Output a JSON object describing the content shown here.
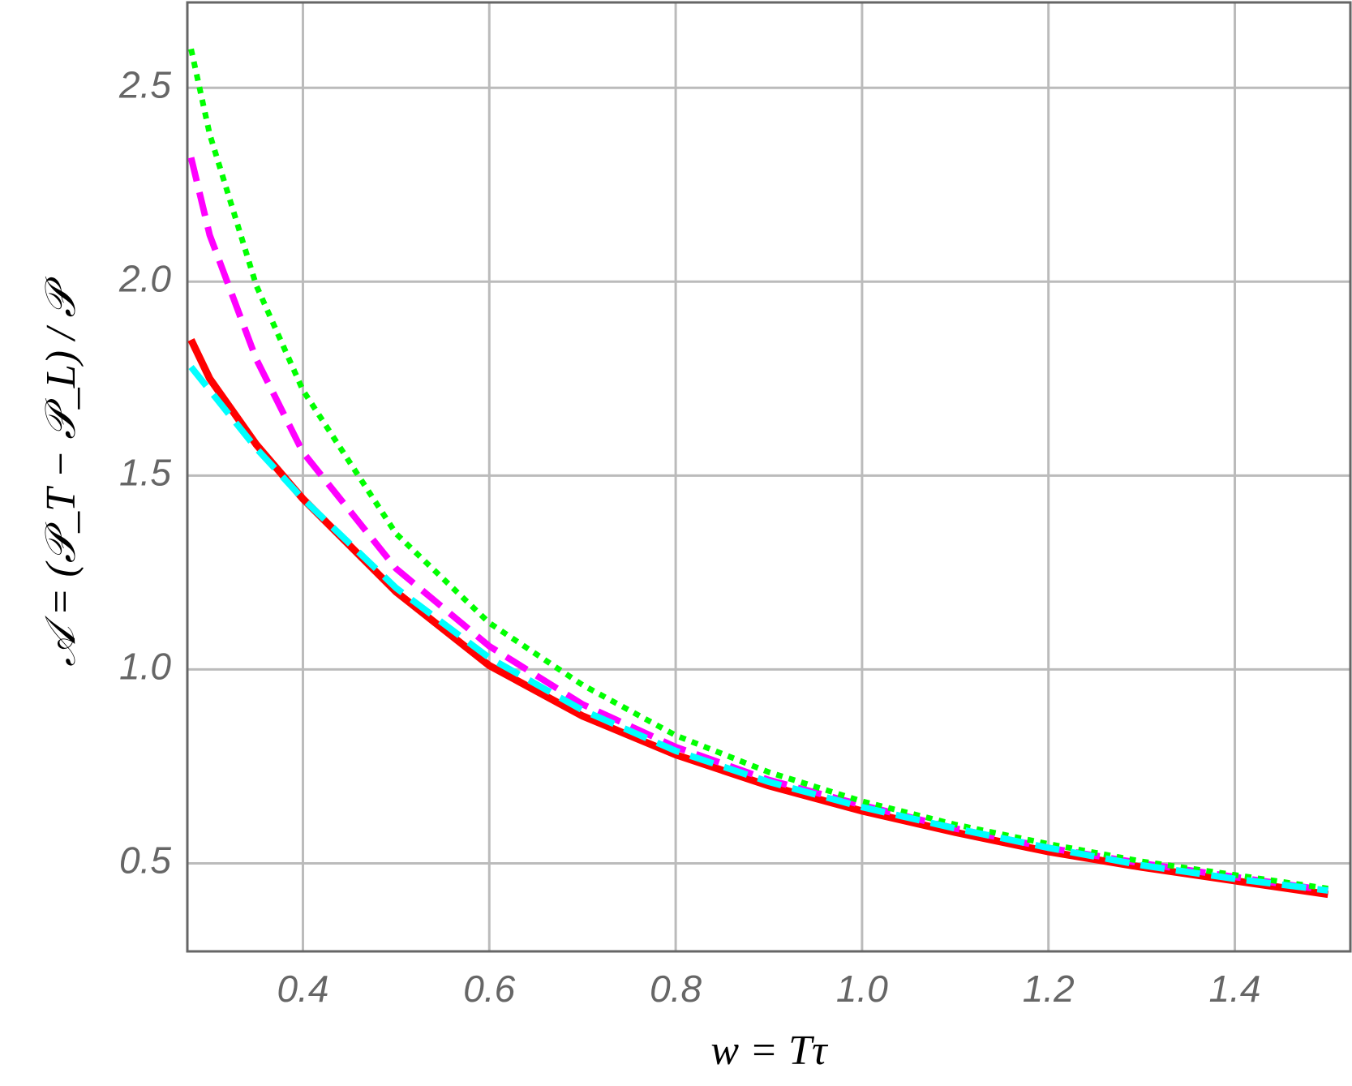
{
  "chart_data": {
    "type": "line",
    "x_label": "w = Tτ",
    "y_label": "𝒜 = (𝒫_T − 𝒫_L) / 𝒫",
    "x": [
      0.28,
      0.3,
      0.35,
      0.4,
      0.5,
      0.6,
      0.7,
      0.8,
      0.9,
      1.0,
      1.1,
      1.2,
      1.3,
      1.4,
      1.5
    ],
    "series": [
      {
        "color": "#ff0000",
        "style": "solid",
        "values": [
          1.85,
          1.75,
          1.58,
          1.44,
          1.2,
          1.01,
          0.88,
          0.78,
          0.7,
          0.635,
          0.58,
          0.53,
          0.49,
          0.455,
          0.42
        ]
      },
      {
        "color": "#ff00ff",
        "style": "dashed",
        "values": [
          2.32,
          2.12,
          1.8,
          1.56,
          1.26,
          1.06,
          0.91,
          0.8,
          0.715,
          0.65,
          0.59,
          0.54,
          0.5,
          0.465,
          0.43
        ]
      },
      {
        "color": "#00ff00",
        "style": "dotted",
        "values": [
          2.6,
          2.38,
          1.99,
          1.72,
          1.35,
          1.12,
          0.96,
          0.83,
          0.735,
          0.66,
          0.6,
          0.55,
          0.505,
          0.47,
          0.435
        ]
      },
      {
        "color": "#00ffff",
        "style": "dashed",
        "values": [
          1.78,
          1.72,
          1.57,
          1.44,
          1.21,
          1.03,
          0.895,
          0.79,
          0.71,
          0.645,
          0.59,
          0.54,
          0.495,
          0.46,
          0.43
        ]
      }
    ],
    "xlim": [
      0.276,
      1.524
    ],
    "ylim": [
      0.273,
      2.72
    ],
    "xticks": [
      0.4,
      0.6,
      0.8,
      {
        "value": 1,
        "label": "1.0"
      },
      1.2,
      1.4
    ],
    "yticks": [
      0.5,
      {
        "value": 1,
        "label": "1.0"
      },
      1.5,
      {
        "value": 2,
        "label": "2.0"
      },
      2.5
    ],
    "grid": true
  }
}
